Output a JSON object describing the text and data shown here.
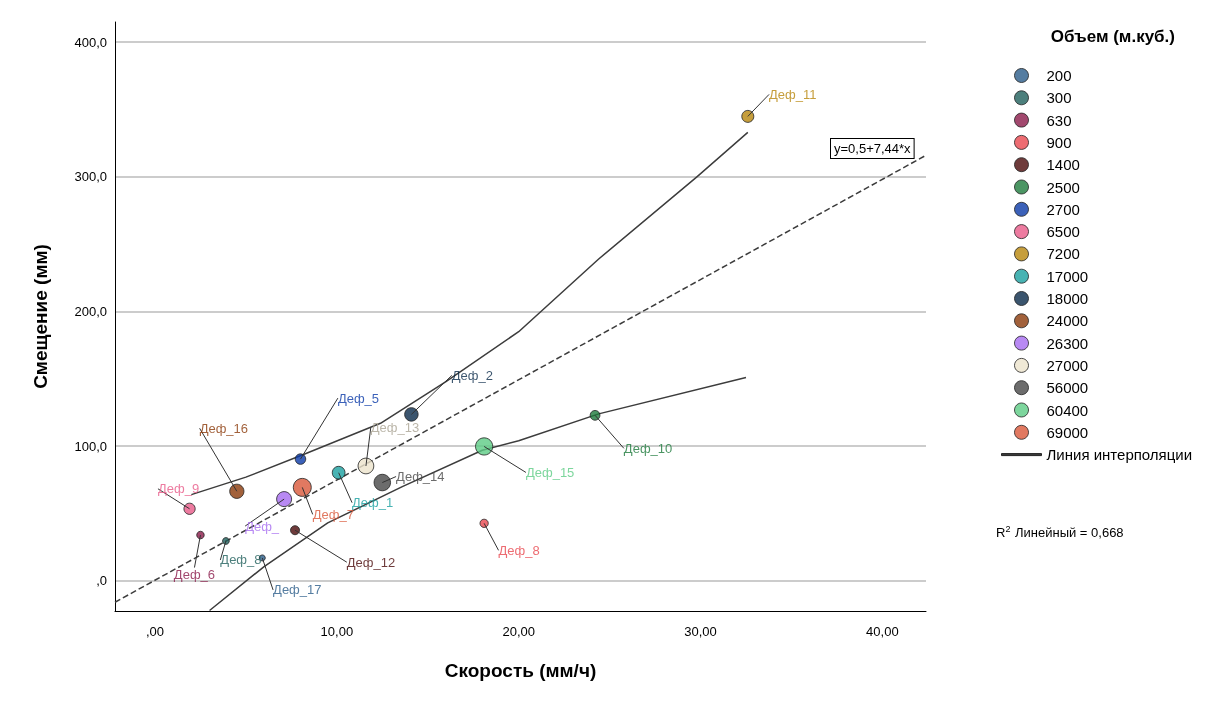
{
  "chart_data": {
    "type": "scatter",
    "xlabel": "Скорость (мм/ч)",
    "ylabel": "Смещение (мм)",
    "legend_title": "Объем (м.куб.)",
    "legend": "right",
    "grid": "y",
    "marker": "circle",
    "xlim": [
      -2.2,
      42.4
    ],
    "ylim": [
      -22.4,
      415
    ],
    "xticks": [
      {
        "value": 0,
        "label": ",00"
      },
      {
        "value": 10,
        "label": "10,00"
      },
      {
        "value": 20,
        "label": "20,00"
      },
      {
        "value": 30,
        "label": "30,00"
      },
      {
        "value": 40,
        "label": "40,00"
      }
    ],
    "yticks": [
      {
        "value": 0,
        "label": ",0"
      },
      {
        "value": 100,
        "label": "100,0"
      },
      {
        "value": 200,
        "label": "200,0"
      },
      {
        "value": 300,
        "label": "300,0"
      },
      {
        "value": 400,
        "label": "400,0"
      }
    ],
    "series": [
      {
        "name": "200",
        "color": "#2a5d8a",
        "x": [
          5.9
        ],
        "values": [
          17
        ]
      },
      {
        "name": "300",
        "color": "#1f5f5b",
        "x": [
          3.9
        ],
        "values": [
          29.6
        ]
      },
      {
        "name": "630",
        "color": "#8b1a4a",
        "x": [
          2.5
        ],
        "values": [
          34
        ]
      },
      {
        "name": "900",
        "color": "#e8474f",
        "x": [
          18.1
        ],
        "values": [
          42.7
        ]
      },
      {
        "name": "1400",
        "color": "#4a0a0a",
        "x": [
          7.7
        ],
        "values": [
          37.6
        ]
      },
      {
        "name": "2500",
        "color": "#1e7a3c",
        "x": [
          24.2
        ],
        "values": [
          122.9
        ]
      },
      {
        "name": "2700",
        "color": "#0a3aa8",
        "x": [
          8.0
        ],
        "values": [
          90.4
        ]
      },
      {
        "name": "6500",
        "color": "#e85a88",
        "x": [
          1.9
        ],
        "values": [
          53.5
        ]
      },
      {
        "name": "7200",
        "color": "#b8860b",
        "x": [
          32.6
        ],
        "values": [
          344.9
        ]
      },
      {
        "name": "17000",
        "color": "#1aa0a0",
        "x": [
          10.1
        ],
        "values": [
          80.3
        ]
      },
      {
        "name": "18000",
        "color": "#0a2a4a",
        "x": [
          14.1
        ],
        "values": [
          123.6
        ]
      },
      {
        "name": "24000",
        "color": "#8b3a0a",
        "x": [
          4.5
        ],
        "values": [
          66.5
        ]
      },
      {
        "name": "26300",
        "color": "#a66cf0",
        "x": [
          7.1
        ],
        "values": [
          60.7
        ]
      },
      {
        "name": "27000",
        "color": "#ece4cc",
        "x": [
          11.6
        ],
        "values": [
          85.3
        ]
      },
      {
        "name": "56000",
        "color": "#474747",
        "x": [
          12.5
        ],
        "values": [
          73
        ]
      },
      {
        "name": "60400",
        "color": "#5ccc85",
        "x": [
          18.1
        ],
        "values": [
          99.8
        ]
      },
      {
        "name": "69000",
        "color": "#d9573a",
        "x": [
          8.1
        ],
        "values": [
          69.4
        ]
      },
      {
        "type": "line",
        "marker": "none",
        "name": "Линия интерполяции",
        "color": "#3c3c3c",
        "x": [
          2,
          5,
          8.2,
          12.4,
          16,
          20,
          24.4,
          29.8,
          32.6
        ],
        "values": [
          64,
          77,
          94,
          117,
          148,
          185,
          239,
          300,
          333
        ]
      },
      {
        "type": "line",
        "marker": "none",
        "color": "#3c3c3c",
        "x": [
          3,
          6,
          9.5,
          13.6,
          18,
          20,
          24.4,
          32.5
        ],
        "values": [
          -22,
          10.6,
          43,
          70,
          97,
          104,
          124,
          151
        ]
      },
      {
        "type": "line",
        "marker": "none",
        "color": "#3c3c3c",
        "line_style": "dashed",
        "x": [
          -2.2,
          42.4
        ],
        "values": [
          -15.9,
          316
        ]
      }
    ],
    "annotations": [
      {
        "text": "Деф_17",
        "x": 5.9,
        "y": 17
      },
      {
        "text": "Деф_8",
        "x": 3.9,
        "y": 29.6
      },
      {
        "text": "Деф_6",
        "x": 2.5,
        "y": 34
      },
      {
        "text": "Деф_8",
        "x": 18.1,
        "y": 42.7
      },
      {
        "text": "Деф_12",
        "x": 7.7,
        "y": 37.6
      },
      {
        "text": "Деф_10",
        "x": 24.2,
        "y": 122.9
      },
      {
        "text": "Деф_5",
        "x": 8.0,
        "y": 90.4
      },
      {
        "text": "Деф_9",
        "x": 1.9,
        "y": 53.5
      },
      {
        "text": "Деф_11",
        "x": 32.6,
        "y": 344.9
      },
      {
        "text": "Деф_1",
        "x": 10.1,
        "y": 80.3
      },
      {
        "text": "Деф_2",
        "x": 14.1,
        "y": 123.6
      },
      {
        "text": "Деф_16",
        "x": 4.5,
        "y": 66.5
      },
      {
        "text": "Деф_",
        "x": 7.1,
        "y": 60.7
      },
      {
        "text": "Деф_13",
        "x": 11.6,
        "y": 85.3
      },
      {
        "text": "Деф_14",
        "x": 12.5,
        "y": 73
      },
      {
        "text": "Деф_15",
        "x": 18.1,
        "y": 99.8
      },
      {
        "text": "Деф_7",
        "x": 8.1,
        "y": 69.4
      },
      "y=0,5+7,44*x",
      "R$^{2}$ Линейный = 0,668"
    ]
  }
}
